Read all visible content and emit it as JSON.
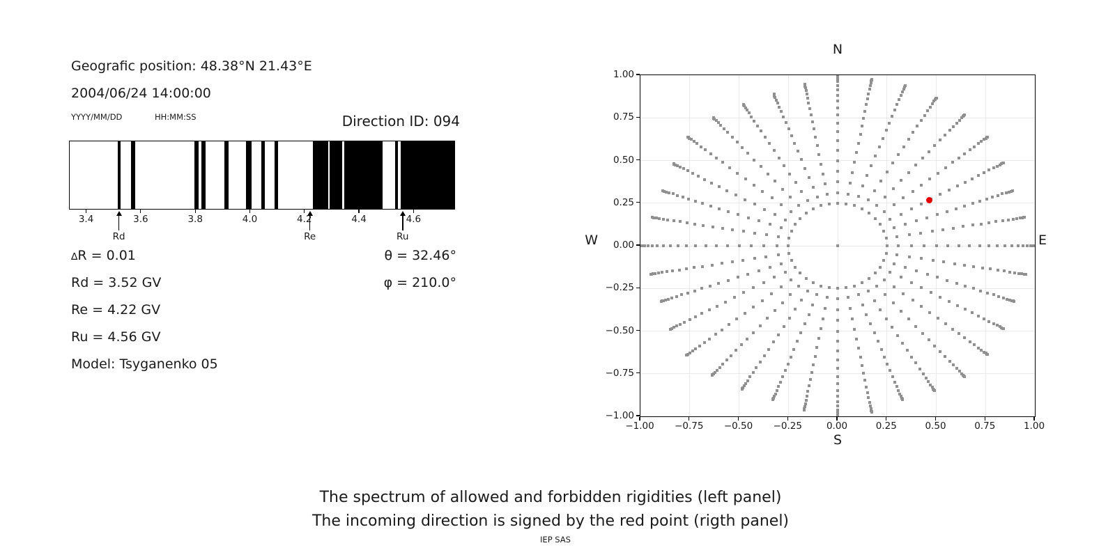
{
  "header": {
    "geographic_position": "Geografic position: 48.38°N 21.43°E",
    "datetime": "2004/06/24 14:00:00",
    "date_format": "YYYY/MM/DD",
    "time_format": "HH:MM:SS",
    "direction_id": "Direction ID: 094"
  },
  "info": {
    "delta_r": "∆R = 0.01",
    "rd": "Rd = 3.52 GV",
    "re": "Re = 4.22 GV",
    "ru": "Ru = 4.56 GV",
    "model": "Model: Tsyganenko 05",
    "theta": "θ = 32.46°",
    "phi": "φ = 210.0°"
  },
  "captions": {
    "line1": "The spectrum of allowed and forbidden rigidities (left panel)",
    "line2": "The incoming direction is signed by the red point (rigth panel)",
    "credit": "IEP SAS"
  },
  "chart_data": [
    {
      "id": "rigidity-spectrum",
      "type": "barcode",
      "description": "Spectrum of allowed (black) and forbidden (white) rigidities in GV",
      "x_range": [
        3.341,
        4.751
      ],
      "ticks": [
        3.4,
        3.6,
        3.8,
        4.0,
        4.2,
        4.4,
        4.6
      ],
      "tick_labels": [
        "3.4",
        "3.6",
        "3.8",
        "4.0",
        "4.2",
        "4.4",
        "4.6"
      ],
      "allowed_intervals_gv": [
        [
          3.517,
          3.527
        ],
        [
          3.567,
          3.581
        ],
        [
          3.798,
          3.814
        ],
        [
          3.824,
          3.839
        ],
        [
          3.908,
          3.924
        ],
        [
          3.988,
          4.007
        ],
        [
          4.044,
          4.056
        ],
        [
          4.092,
          4.104
        ],
        [
          4.233,
          4.288
        ],
        [
          4.295,
          4.339
        ],
        [
          4.348,
          4.488
        ],
        [
          4.533,
          4.544
        ],
        [
          4.554,
          4.751
        ]
      ],
      "markers": [
        {
          "label": "Rd",
          "value": 3.52
        },
        {
          "label": "Re",
          "value": 4.22
        },
        {
          "label": "Ru",
          "value": 4.56
        }
      ],
      "delta_r": 0.01,
      "rd_gv": 3.52,
      "re_gv": 4.22,
      "ru_gv": 4.56,
      "model": "Tsyganenko 05"
    },
    {
      "id": "direction-map",
      "type": "scatter",
      "description": "Asymptotic/arrival direction map; incoming direction marked by red point",
      "xlim": [
        -1,
        1
      ],
      "ylim": [
        -1,
        1
      ],
      "ticks": [
        -1,
        -0.75,
        -0.5,
        -0.25,
        0,
        0.25,
        0.5,
        0.75,
        1
      ],
      "tick_labels": [
        "−1.00",
        "−0.75",
        "−0.50",
        "−0.25",
        "0.00",
        "0.25",
        "0.50",
        "0.75",
        "1.00"
      ],
      "grid": true,
      "compass": {
        "top": "N",
        "bottom": "S",
        "left": "W",
        "right": "E"
      },
      "spokes": {
        "count": 36,
        "azimuth_step_deg": 10,
        "inner_radius": 0.25,
        "zenith_angles_deg": [
          90,
          86,
          82,
          78,
          74,
          70,
          66,
          62,
          58,
          54,
          50,
          46,
          42,
          38,
          34,
          30,
          26,
          22,
          18,
          14.478
        ],
        "tip_radii": [
          1.0,
          0.99,
          1.0,
          1.0,
          1.0,
          0.99,
          0.97,
          0.945,
          0.96,
          1.0,
          0.97,
          0.95,
          0.97,
          0.99,
          1.0,
          0.98,
          0.96,
          0.99,
          1.0,
          0.98,
          0.96,
          0.97,
          0.99,
          1.0,
          0.98,
          0.95,
          0.96,
          1.0,
          0.955,
          0.945,
          0.96,
          0.99,
          0.98,
          0.955,
          0.945,
          0.96
        ]
      },
      "center_dot": {
        "x": 0,
        "y": 0
      },
      "red_point": {
        "x": 0.466,
        "y": 0.269,
        "theta_deg": 32.46,
        "phi_deg": 210.0
      },
      "dot_color": "#909090",
      "red_color": "#e50000",
      "grid_color": "#e9e9e9"
    }
  ]
}
